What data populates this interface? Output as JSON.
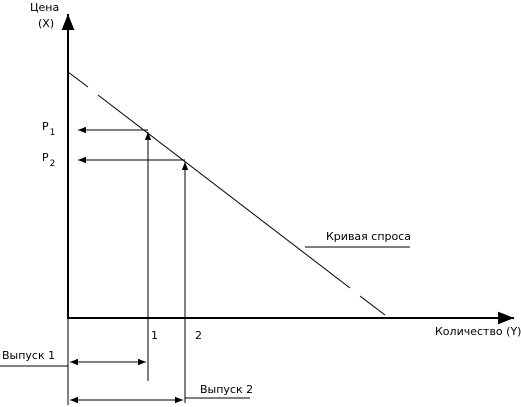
{
  "axes": {
    "y_label": "Цена",
    "y_unit": "(X)",
    "x_label": "Количество  (Y)"
  },
  "prices": [
    {
      "label": "P",
      "sub": "1"
    },
    {
      "label": "P",
      "sub": "2"
    }
  ],
  "quantities": [
    "1",
    "2"
  ],
  "curve_label": "Кривая спроса",
  "outputs": [
    "Выпуск 1",
    "Выпуск  2"
  ]
}
